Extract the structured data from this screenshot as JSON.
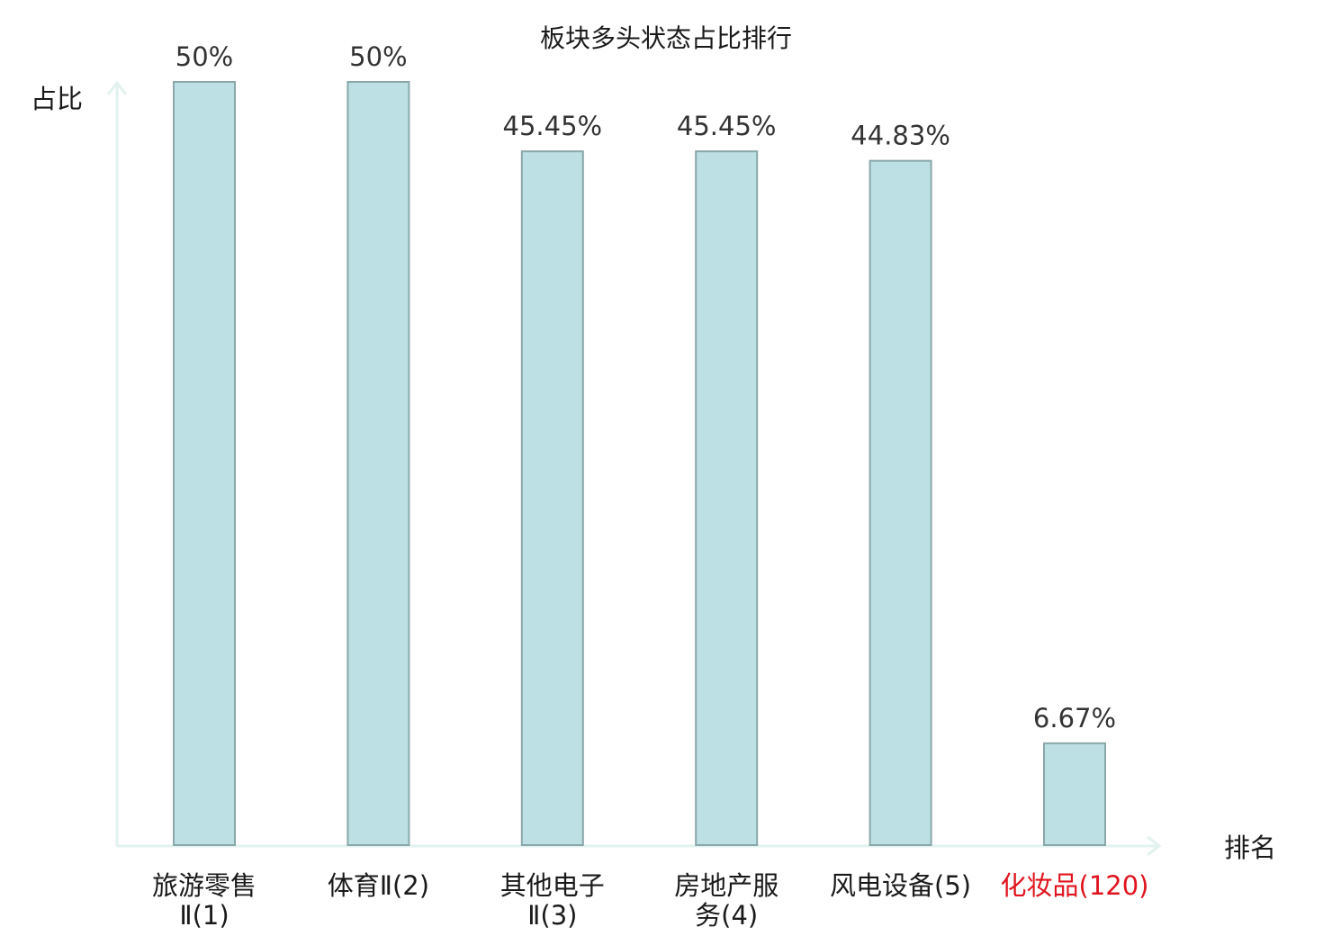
{
  "chart_data": {
    "type": "bar",
    "title": "板块多头状态占比排行",
    "ylabel": "占比",
    "xlabel": "排名",
    "categories": [
      {
        "name_lines": [
          "旅游零售",
          "Ⅱ(1)"
        ],
        "highlight": false
      },
      {
        "name_lines": [
          "体育Ⅱ(2)"
        ],
        "highlight": false
      },
      {
        "name_lines": [
          "其他电子",
          "Ⅱ(3)"
        ],
        "highlight": false
      },
      {
        "name_lines": [
          "房地产服",
          "务(4)"
        ],
        "highlight": false
      },
      {
        "name_lines": [
          "风电设备(5)"
        ],
        "highlight": false
      },
      {
        "name_lines": [
          "化妆品(120)"
        ],
        "highlight": true
      }
    ],
    "values": [
      50,
      50,
      45.45,
      45.45,
      44.83,
      6.67
    ],
    "value_labels": [
      "50%",
      "50%",
      "45.45%",
      "45.45%",
      "44.83%",
      "6.67%"
    ],
    "ylim": [
      0,
      50
    ],
    "grid": false,
    "legend": "none",
    "colors": {
      "bar_fill": "#bce0e3",
      "bar_stroke": "#8aa7aa",
      "axis": "#e1f2ef",
      "highlight_text": "#e0141e",
      "value_text": "#333333"
    }
  }
}
